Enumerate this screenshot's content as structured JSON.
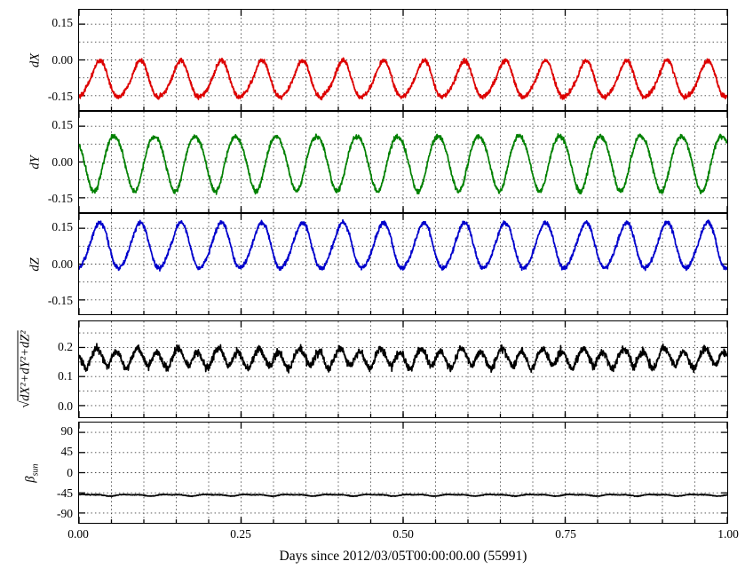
{
  "chart_data": {
    "type": "line",
    "title": "",
    "description": "Five stacked time-series panels over one day: orbit deviations dX, dY, dZ, their magnitude sqrt(dX²+dY²+dZ²), and sun beta angle β_sun (~ -50 deg). Each deviation component oscillates with ~16 cycles per day.",
    "legend": "none",
    "grid_style": "dotted",
    "background": "#ffffff",
    "n_points": 2200,
    "x_axis": {
      "label": "Days since 2012/03/05T00:00:00.00 (55991)",
      "range": [
        0,
        1
      ],
      "minor_step": 0.05,
      "ticks": [
        {
          "v": 0,
          "label": "0.00"
        },
        {
          "v": 0.25,
          "label": "0.25"
        },
        {
          "v": 0.5,
          "label": "0.50"
        },
        {
          "v": 0.75,
          "label": "0.75"
        },
        {
          "v": 1,
          "label": "1.00"
        }
      ]
    },
    "panels": [
      {
        "id": "dX",
        "ylabel": {
          "text": "dX"
        },
        "ylim": [
          -0.21,
          0.21
        ],
        "yticks": [
          {
            "v": 0.15,
            "label": "0.15"
          },
          {
            "v": 0,
            "label": "0.00"
          },
          {
            "v": -0.15,
            "label": "-0.15"
          }
        ],
        "grid": [
          0.15,
          0.075,
          0,
          -0.075,
          -0.15
        ]
      },
      {
        "id": "dY",
        "ylabel": {
          "text": "dY"
        },
        "ylim": [
          -0.21,
          0.21
        ],
        "yticks": [
          {
            "v": 0.15,
            "label": "0.15"
          },
          {
            "v": 0,
            "label": "0.00"
          },
          {
            "v": -0.15,
            "label": "-0.15"
          }
        ],
        "grid": [
          0.15,
          0.075,
          0,
          -0.075,
          -0.15
        ]
      },
      {
        "id": "dZ",
        "ylabel": {
          "text": "dZ"
        },
        "ylim": [
          -0.21,
          0.21
        ],
        "yticks": [
          {
            "v": 0.15,
            "label": "0.15"
          },
          {
            "v": 0,
            "label": "0.00"
          },
          {
            "v": -0.15,
            "label": "-0.15"
          }
        ],
        "grid": [
          0.15,
          0.075,
          0,
          -0.075,
          -0.15
        ]
      },
      {
        "id": "magnitude",
        "ylabel": {
          "sqrt": "dX²+dY²+dZ²"
        },
        "ylim": [
          -0.04,
          0.29
        ],
        "yticks": [
          {
            "v": 0.2,
            "label": "0.2"
          },
          {
            "v": 0.1,
            "label": "0.1"
          },
          {
            "v": 0,
            "label": "0.0"
          }
        ],
        "grid": [
          0.25,
          0.2,
          0.15,
          0.1,
          0.05,
          0
        ]
      },
      {
        "id": "beta_sun",
        "ylabel": {
          "text": "β",
          "sub": "sun"
        },
        "ylim": [
          -112,
          112
        ],
        "yticks": [
          {
            "v": 90,
            "label": "90"
          },
          {
            "v": 45,
            "label": "45"
          },
          {
            "v": 0,
            "label": "0"
          },
          {
            "v": -45,
            "label": "-45"
          },
          {
            "v": -90,
            "label": "-90"
          }
        ],
        "grid": [
          90,
          45,
          0,
          -45,
          -90
        ]
      }
    ],
    "series": [
      {
        "name": "dX",
        "panel": 0,
        "color": "#dd0000",
        "cycles_per_day": 16,
        "approx_min": -0.17,
        "approx_max": -0.01,
        "model": {
          "mean": -0.085,
          "amp": 0.075,
          "cycles": 16,
          "phase": -1.5708,
          "amp2": 0.01,
          "phase2": 0.8,
          "noise": 0.005
        }
      },
      {
        "name": "dY",
        "panel": 1,
        "color": "#008000",
        "cycles_per_day": 16,
        "approx_min": -0.13,
        "approx_max": 0.13,
        "model": {
          "mean": 0,
          "amp": 0.115,
          "cycles": 16,
          "phase": 2.4,
          "amp2": 0.008,
          "phase2": 0,
          "noise": 0.005
        }
      },
      {
        "name": "dZ",
        "panel": 2,
        "color": "#0000cc",
        "cycles_per_day": 16,
        "approx_min": -0.02,
        "approx_max": 0.18,
        "model": {
          "mean": 0.075,
          "amp": 0.095,
          "cycles": 16,
          "phase": -1.5708,
          "amp2": 0.008,
          "phase2": 0.5,
          "noise": 0.005
        }
      },
      {
        "name": "sqrt(dX²+dY²+dZ²)",
        "panel": 3,
        "color": "#000000",
        "derived": "magnitude",
        "approx_min": 0.13,
        "approx_max": 0.21,
        "model": {
          "noise": 0.004
        }
      },
      {
        "name": "β_sun",
        "panel": 4,
        "color": "#000000",
        "approx_value": -50,
        "model": {
          "mean": -50,
          "amp": 1.5,
          "cycles": 16,
          "phase": 0,
          "amp2": 0.8,
          "phase2": 1.2,
          "noise": 0.4
        }
      }
    ]
  }
}
